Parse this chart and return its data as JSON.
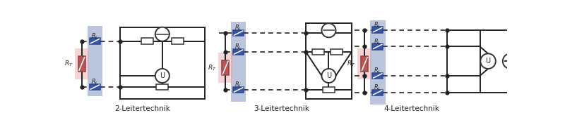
{
  "diagrams": [
    "2-Leitertechnik",
    "3-Leitertechnik",
    "4-Leitertechnik"
  ],
  "bg_color": "#ffffff",
  "blue_bg": "#5570aa",
  "pink_bg": "#e8a0a0",
  "rl_fill": "#3355aa",
  "rt_fill": "#bb5555",
  "line_color": "#222222",
  "label_color": "#222222",
  "fig_width": 8.0,
  "fig_height": 1.81,
  "lw": 1.4,
  "dlw": 1.2
}
